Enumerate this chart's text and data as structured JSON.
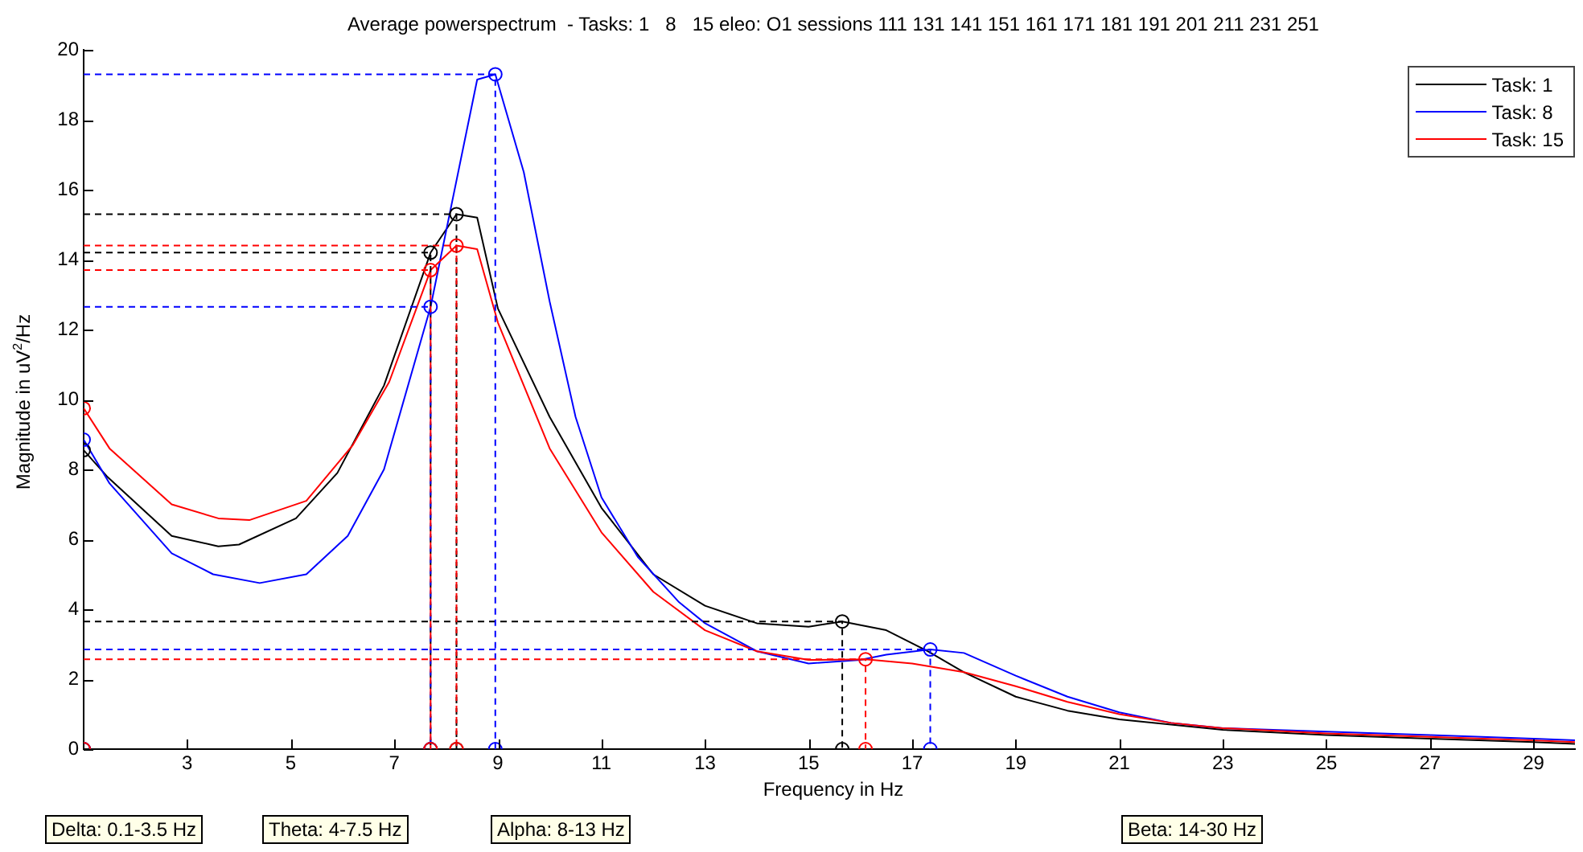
{
  "chart_data": {
    "type": "line",
    "title": "Average powerspectrum  - Tasks: 1   8   15 eleo: O1 sessions 111 131 141 151 161 171 181 191 201 211 231 251",
    "xlabel": "Frequency in Hz",
    "ylabel": "Magnitude in uV$^{2}$/Hz",
    "xlim": [
      1,
      29.8
    ],
    "xticks": [
      3,
      5,
      7,
      9,
      11,
      13,
      15,
      17,
      19,
      21,
      23,
      25,
      27,
      29
    ],
    "ylim": [
      0,
      20
    ],
    "yticks": [
      0,
      2,
      4,
      6,
      8,
      10,
      12,
      14,
      16,
      18,
      20
    ],
    "grid": false,
    "legend": "top right",
    "annotations": [
      "Delta: 0.1-3.5 Hz",
      "Theta: 4-7.5 Hz",
      "Alpha: 8-13 Hz",
      "Beta: 14-30 Hz"
    ],
    "series": [
      {
        "name": "Task: 1",
        "color": "#000000",
        "marker": "none",
        "line_style": "solid",
        "x": [
          1,
          1.45,
          2.7,
          3.6,
          4,
          5.1,
          5.9,
          6.8,
          7.7,
          8.2,
          8.6,
          9,
          10,
          11,
          12,
          13,
          14,
          15,
          15.65,
          16.5,
          17.3,
          18,
          19,
          20,
          21,
          22,
          23,
          25,
          27,
          29,
          29.8
        ],
        "values": [
          8.55,
          7.8,
          6.1,
          5.8,
          5.85,
          6.6,
          7.9,
          10.4,
          14.2,
          15.3,
          15.2,
          12.6,
          9.5,
          6.9,
          5,
          4.1,
          3.6,
          3.5,
          3.65,
          3.4,
          2.8,
          2.2,
          1.5,
          1.1,
          0.85,
          0.7,
          0.55,
          0.4,
          0.3,
          0.2,
          0.15
        ]
      },
      {
        "name": "Task: 8",
        "color": "#0000ff",
        "marker": "none",
        "line_style": "solid",
        "x": [
          1,
          1.5,
          2.7,
          3.5,
          4.4,
          5.3,
          6.1,
          6.8,
          7.7,
          8.6,
          8.95,
          9.5,
          10,
          10.5,
          11,
          11.7,
          12.5,
          13,
          14,
          15,
          16,
          16.5,
          17.35,
          18,
          19,
          20,
          21,
          22,
          23,
          25,
          27,
          29,
          29.8
        ],
        "values": [
          8.85,
          7.6,
          5.6,
          5,
          4.75,
          5,
          6.1,
          8,
          12.65,
          19.15,
          19.3,
          16.5,
          12.8,
          9.5,
          7.2,
          5.5,
          4.2,
          3.6,
          2.8,
          2.45,
          2.55,
          2.7,
          2.85,
          2.75,
          2.1,
          1.5,
          1.05,
          0.75,
          0.6,
          0.5,
          0.4,
          0.3,
          0.25
        ]
      },
      {
        "name": "Task: 15",
        "color": "#ff0000",
        "marker": "none",
        "line_style": "solid",
        "x": [
          1,
          1.5,
          2.7,
          3.6,
          4.2,
          5.3,
          6.2,
          6.9,
          7.7,
          8.2,
          8.6,
          9,
          10,
          11,
          12,
          13,
          14,
          15,
          16.1,
          17,
          18,
          19,
          20,
          21,
          22,
          23,
          25,
          27,
          29,
          29.8
        ],
        "values": [
          9.75,
          8.6,
          7,
          6.6,
          6.55,
          7.1,
          8.7,
          10.5,
          13.7,
          14.4,
          14.3,
          12.2,
          8.6,
          6.2,
          4.5,
          3.4,
          2.8,
          2.55,
          2.57,
          2.45,
          2.2,
          1.8,
          1.35,
          1,
          0.75,
          0.6,
          0.45,
          0.35,
          0.25,
          0.2
        ]
      },
      {
        "color": "#000000",
        "type": "line",
        "marker": "none",
        "line_style": "dashed",
        "x": [
          1,
          7.7,
          7.7
        ],
        "values": [
          14.2,
          14.2,
          0
        ]
      },
      {
        "color": "#000000",
        "type": "line",
        "marker": "none",
        "line_style": "dashed",
        "x": [
          1,
          8.2,
          8.2
        ],
        "values": [
          15.3,
          15.3,
          0
        ]
      },
      {
        "color": "#000000",
        "type": "line",
        "marker": "none",
        "line_style": "dashed",
        "x": [
          1,
          15.65,
          15.65
        ],
        "values": [
          3.65,
          3.65,
          0
        ]
      },
      {
        "color": "#0000ff",
        "type": "line",
        "marker": "none",
        "line_style": "dashed",
        "x": [
          1,
          7.7,
          7.7
        ],
        "values": [
          12.65,
          12.65,
          0
        ]
      },
      {
        "color": "#0000ff",
        "type": "line",
        "marker": "none",
        "line_style": "dashed",
        "x": [
          1,
          8.95,
          8.95
        ],
        "values": [
          19.3,
          19.3,
          0
        ]
      },
      {
        "color": "#0000ff",
        "type": "line",
        "marker": "none",
        "line_style": "dashed",
        "x": [
          1,
          17.35,
          17.35
        ],
        "values": [
          2.85,
          2.85,
          0
        ]
      },
      {
        "color": "#ff0000",
        "type": "line",
        "marker": "none",
        "line_style": "dashed",
        "x": [
          1,
          7.7,
          7.7
        ],
        "values": [
          13.7,
          13.7,
          0
        ]
      },
      {
        "color": "#ff0000",
        "type": "line",
        "marker": "none",
        "line_style": "dashed",
        "x": [
          1,
          8.2,
          8.2
        ],
        "values": [
          14.4,
          14.4,
          0
        ]
      },
      {
        "color": "#ff0000",
        "type": "line",
        "marker": "none",
        "line_style": "dashed",
        "x": [
          1,
          16.1,
          16.1
        ],
        "values": [
          2.57,
          2.57,
          0
        ]
      },
      {
        "color": "#000000",
        "type": "scatter",
        "marker": "circle",
        "x": [
          1,
          1,
          7.7,
          7.7,
          8.2,
          8.2,
          15.65,
          15.65
        ],
        "values": [
          8.55,
          0,
          14.2,
          0,
          15.3,
          0,
          3.65,
          0
        ]
      },
      {
        "color": "#0000ff",
        "type": "scatter",
        "marker": "circle",
        "x": [
          1,
          1,
          7.7,
          7.7,
          8.95,
          8.95,
          17.35,
          17.35
        ],
        "values": [
          8.85,
          0,
          12.65,
          0,
          19.3,
          0,
          2.85,
          0
        ]
      },
      {
        "color": "#ff0000",
        "type": "scatter",
        "marker": "circle",
        "x": [
          1,
          1,
          7.7,
          7.7,
          8.2,
          8.2,
          16.1,
          16.1
        ],
        "values": [
          9.75,
          0,
          13.7,
          0,
          14.4,
          0,
          2.57,
          0
        ]
      }
    ]
  }
}
